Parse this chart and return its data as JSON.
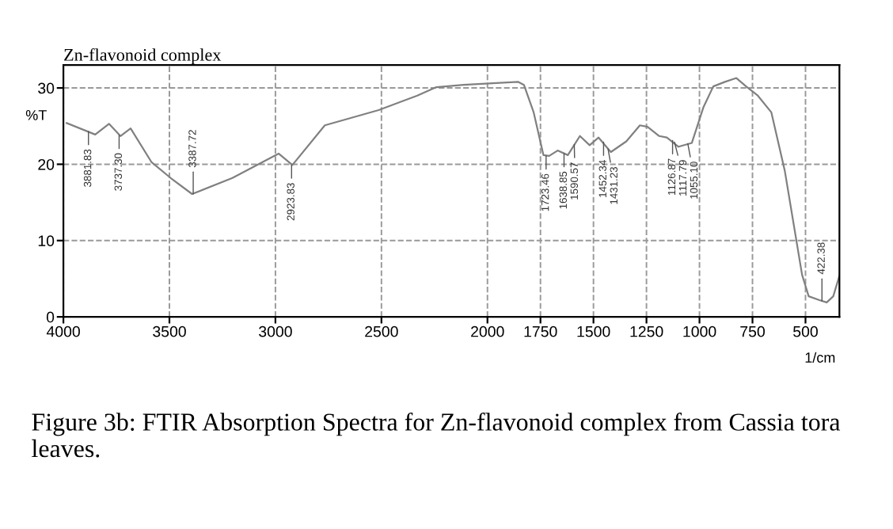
{
  "chart_data": {
    "type": "line",
    "title": "Zn-flavonoid complex",
    "xlabel": "1/cm",
    "ylabel": "%T",
    "x": [
      3985,
      3850,
      3785,
      3731,
      3683,
      3585,
      3494,
      3393,
      3203,
      2985,
      2920,
      2767,
      2513,
      2331,
      2241,
      2113,
      1856,
      1828,
      1782,
      1736,
      1709,
      1669,
      1621,
      1564,
      1518,
      1476,
      1418,
      1345,
      1281,
      1245,
      1190,
      1154,
      1099,
      1036,
      981,
      935,
      880,
      826,
      780,
      725,
      661,
      598,
      516,
      485,
      434,
      400,
      369,
      340
    ],
    "series": [
      {
        "color": "#808080",
        "values": [
          25.4,
          23.9,
          25.3,
          23.7,
          24.7,
          20.3,
          18.2,
          16.1,
          18.2,
          21.4,
          19.9,
          25.1,
          27.1,
          29.0,
          30.1,
          30.4,
          30.8,
          30.4,
          26.8,
          21.2,
          21.1,
          21.8,
          21.2,
          23.7,
          22.5,
          23.5,
          21.6,
          23.0,
          25.1,
          24.9,
          23.7,
          23.5,
          22.3,
          22.8,
          27.5,
          30.2,
          30.8,
          31.3,
          30.2,
          29.0,
          26.8,
          19.2,
          5.5,
          2.7,
          2.2,
          1.9,
          2.7,
          5.4
        ]
      }
    ],
    "xlim": [
      4000,
      340
    ],
    "ylim": [
      0,
      33
    ],
    "xticks": [
      4000,
      3500,
      3000,
      2500,
      2000,
      1750,
      1500,
      1250,
      1000,
      750,
      500
    ],
    "yticks": [
      0,
      10,
      20,
      30
    ],
    "grid": true,
    "line_style": "solid",
    "annotations": [
      {
        "text": "3881.83",
        "x": 3881.83,
        "y": 24.3
      },
      {
        "text": "3737.30",
        "x": 3737.3,
        "y": 23.8
      },
      {
        "text": "3387.72",
        "x": 3387.72,
        "y": 16.1
      },
      {
        "text": "2923.83",
        "x": 2923.83,
        "y": 19.9
      },
      {
        "text": "1723.46",
        "x": 1723.46,
        "y": 21.1
      },
      {
        "text": "1638.85",
        "x": 1638.85,
        "y": 21.4
      },
      {
        "text": "1590.57",
        "x": 1590.57,
        "y": 22.6
      },
      {
        "text": "1452.34",
        "x": 1452.34,
        "y": 22.9
      },
      {
        "text": "1431.23",
        "x": 1431.23,
        "y": 22.0
      },
      {
        "text": "1126.87",
        "x": 1126.87,
        "y": 23.1
      },
      {
        "text": "1117.79",
        "x": 1117.79,
        "y": 22.9
      },
      {
        "text": "1055.10",
        "x": 1055.1,
        "y": 22.7
      },
      {
        "text": "422.38",
        "x": 422.38,
        "y": 2.1
      },
      "Figure 3b: FTIR Absorption Spectra for Zn-flavonoid complex from Cassia tora leaves."
    ]
  }
}
